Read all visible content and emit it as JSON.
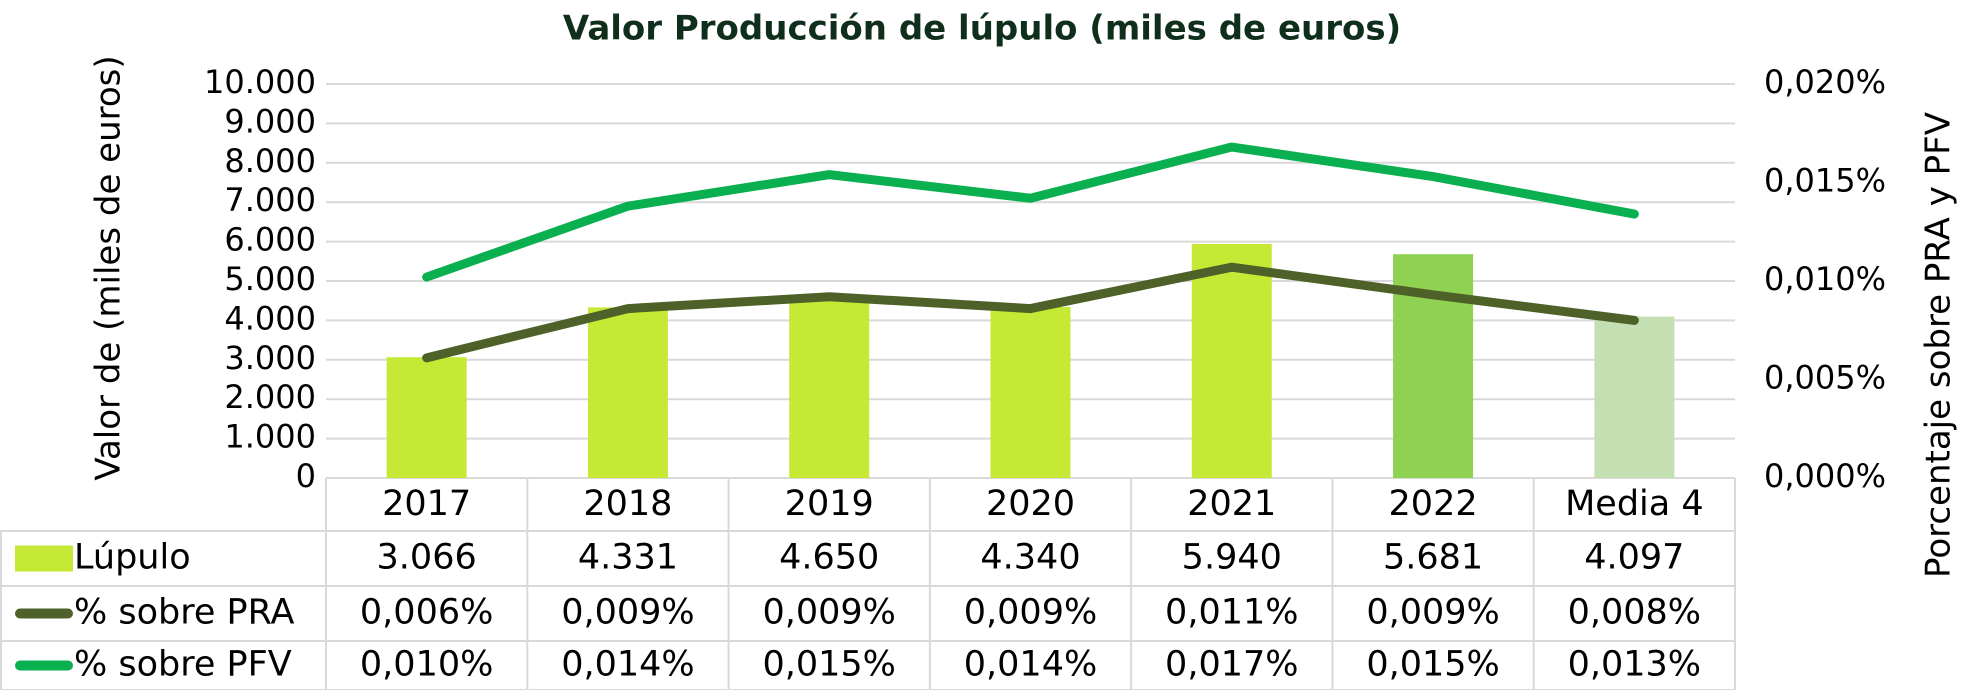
{
  "chart_data": {
    "type": "bar",
    "title": "Valor Producción de lúpulo (miles de euros)",
    "y_label": "Valor de (miles de euros)",
    "y2_label": "Porcentaje  sobre PRA y PFV",
    "categories": [
      "2017",
      "2018",
      "2019",
      "2020",
      "2021",
      "2022",
      "Media 4"
    ],
    "series": [
      {
        "name": "Lúpulo",
        "type": "bar",
        "colors": [
          "#c6e936",
          "#c6e936",
          "#c6e936",
          "#c6e936",
          "#c6e936",
          "#8fd150",
          "#c4e0b2"
        ],
        "values": [
          3066,
          4331,
          4650,
          4340,
          5940,
          5681,
          4097
        ],
        "value_labels": [
          "3.066",
          "4.331",
          "4.650",
          "4.340",
          "5.940",
          "5.681",
          "4.097"
        ]
      },
      {
        "name": "% sobre PRA",
        "type": "line",
        "axis": "y2",
        "color": "#4e6128",
        "values": [
          0.0061,
          0.0086,
          0.0092,
          0.0086,
          0.0107,
          0.0093,
          0.008
        ],
        "value_labels": [
          "0,006%",
          "0,009%",
          "0,009%",
          "0,009%",
          "0,011%",
          "0,009%",
          "0,008%"
        ]
      },
      {
        "name": "% sobre PFV",
        "type": "line",
        "axis": "y2",
        "color": "#0ab04f",
        "values": [
          0.0102,
          0.0138,
          0.0154,
          0.0142,
          0.0168,
          0.0153,
          0.0134
        ],
        "value_labels": [
          "0,010%",
          "0,014%",
          "0,015%",
          "0,014%",
          "0,017%",
          "0,015%",
          "0,013%"
        ]
      }
    ],
    "ylim": [
      0,
      10000
    ],
    "yticks": [
      0,
      {
        "value": 1000,
        "label": "1.000"
      },
      {
        "value": 2000,
        "label": "2.000"
      },
      {
        "value": 3000,
        "label": "3.000"
      },
      {
        "value": 4000,
        "label": "4.000"
      },
      {
        "value": 5000,
        "label": "5.000"
      },
      {
        "value": 6000,
        "label": "6.000"
      },
      {
        "value": 7000,
        "label": "7.000"
      },
      {
        "value": 8000,
        "label": "8.000"
      },
      {
        "value": 9000,
        "label": "9.000"
      },
      {
        "value": 10000,
        "label": "10.000"
      }
    ],
    "y2lim": [
      0,
      0.02
    ],
    "y2ticks": [
      {
        "value": 0,
        "label": "0,000%"
      },
      {
        "value": 0.005,
        "label": "0,005%"
      },
      {
        "value": 0.01,
        "label": "0,010%"
      },
      {
        "value": 0.015,
        "label": "0,015%"
      },
      {
        "value": 0.02,
        "label": "0,020%"
      }
    ],
    "grid": true
  }
}
